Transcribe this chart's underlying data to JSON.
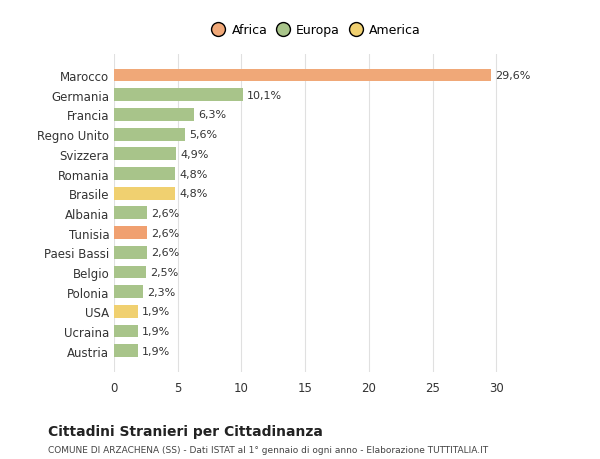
{
  "categories": [
    "Austria",
    "Ucraina",
    "USA",
    "Polonia",
    "Belgio",
    "Paesi Bassi",
    "Tunisia",
    "Albania",
    "Brasile",
    "Romania",
    "Svizzera",
    "Regno Unito",
    "Francia",
    "Germania",
    "Marocco"
  ],
  "values": [
    1.9,
    1.9,
    1.9,
    2.3,
    2.5,
    2.6,
    2.6,
    2.6,
    4.8,
    4.8,
    4.9,
    5.6,
    6.3,
    10.1,
    29.6
  ],
  "colors": [
    "#a8c48a",
    "#a8c48a",
    "#f0d070",
    "#a8c48a",
    "#a8c48a",
    "#a8c48a",
    "#f0a070",
    "#a8c48a",
    "#f0d070",
    "#a8c48a",
    "#a8c48a",
    "#a8c48a",
    "#a8c48a",
    "#a8c48a",
    "#f0a878"
  ],
  "labels": [
    "1,9%",
    "1,9%",
    "1,9%",
    "2,3%",
    "2,5%",
    "2,6%",
    "2,6%",
    "2,6%",
    "4,8%",
    "4,8%",
    "4,9%",
    "5,6%",
    "6,3%",
    "10,1%",
    "29,6%"
  ],
  "title": "Cittadini Stranieri per Cittadinanza",
  "subtitle": "COMUNE DI ARZACHENA (SS) - Dati ISTAT al 1° gennaio di ogni anno - Elaborazione TUTTITALIA.IT",
  "xlim": [
    0,
    32
  ],
  "xticks": [
    0,
    5,
    10,
    15,
    20,
    25,
    30
  ],
  "legend_items": [
    {
      "label": "Africa",
      "color": "#f0a878"
    },
    {
      "label": "Europa",
      "color": "#a8c48a"
    },
    {
      "label": "America",
      "color": "#f0d070"
    }
  ],
  "background_color": "#ffffff",
  "grid_color": "#e0e0e0"
}
